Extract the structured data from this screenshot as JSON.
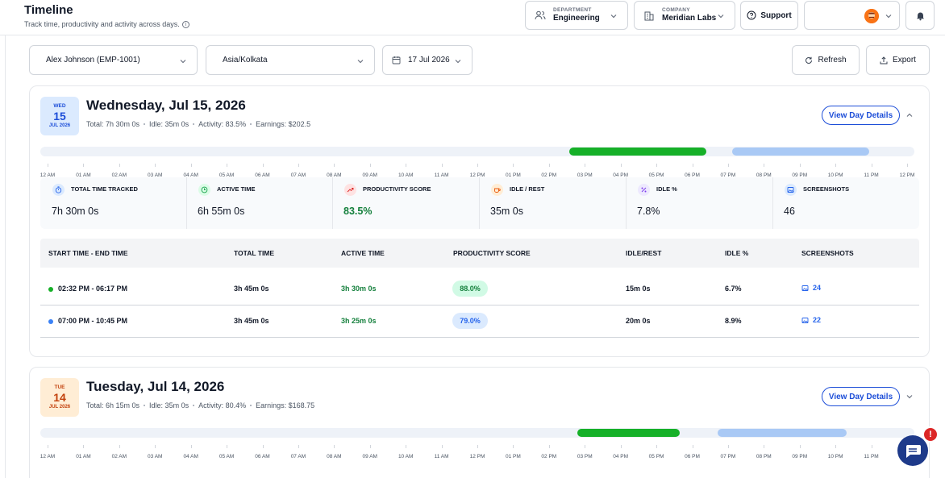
{
  "header": {
    "title": "Timeline",
    "subtitle": "Track time, productivity and activity across days.",
    "department": {
      "label": "DEPARTMENT",
      "value": "Engineering"
    },
    "company": {
      "label": "COMPANY",
      "value": "Meridian Labs"
    },
    "support_label": "Support"
  },
  "filters": {
    "employee": "Alex Johnson (EMP-1001)",
    "timezone": "Asia/Kolkata",
    "date": "17 Jul 2026",
    "refresh_label": "Refresh",
    "export_label": "Export"
  },
  "hours": [
    "12 AM",
    "01 AM",
    "02 AM",
    "03 AM",
    "04 AM",
    "05 AM",
    "06 AM",
    "07 AM",
    "08 AM",
    "09 AM",
    "10 AM",
    "11 AM",
    "12 PM",
    "01 PM",
    "02 PM",
    "03 PM",
    "04 PM",
    "05 PM",
    "06 PM",
    "07 PM",
    "08 PM",
    "09 PM",
    "10 PM",
    "11 PM",
    "12 PM"
  ],
  "days": [
    {
      "badge": {
        "dow": "WED",
        "day": "15",
        "month_year": "JUL 2026"
      },
      "title": "Wednesday, Jul 15, 2026",
      "meta": [
        "Total: 7h 30m 0s",
        "Idle: 35m 0s",
        "Activity: 83.5%",
        "Earnings: $202.5"
      ],
      "view_label": "View Day Details",
      "expanded": true,
      "sessions_on_track": [
        {
          "start_hour": 14.53,
          "end_hour": 18.28,
          "color": "#16b028"
        },
        {
          "start_hour": 19.0,
          "end_hour": 22.75,
          "color": "#a9c9f5"
        }
      ],
      "stats": [
        {
          "label": "TOTAL TIME TRACKED",
          "value": "7h 30m 0s",
          "icon": "stopwatch-icon"
        },
        {
          "label": "ACTIVE TIME",
          "value": "6h 55m 0s",
          "icon": "clock-icon"
        },
        {
          "label": "PRODUCTIVITY SCORE",
          "value": "83.5%",
          "icon": "trend-up-icon"
        },
        {
          "label": "IDLE / REST",
          "value": "35m 0s",
          "icon": "coffee-icon"
        },
        {
          "label": "IDLE %",
          "value": "7.8%",
          "icon": "percent-icon"
        },
        {
          "label": "SCREENSHOTS",
          "value": "46",
          "icon": "image-icon"
        }
      ],
      "table": {
        "columns": [
          "START TIME - END TIME",
          "TOTAL TIME",
          "ACTIVE TIME",
          "PRODUCTIVITY SCORE",
          "IDLE/REST",
          "IDLE %",
          "SCREENSHOTS"
        ],
        "rows": [
          {
            "range": "02:32 PM - 06:17 PM",
            "total": "3h 45m 0s",
            "active": "3h 30m 0s",
            "score": "88.0%",
            "idle": "15m 0s",
            "idle_pct": "6.7%",
            "shots": "24",
            "dot": "#16b028",
            "pill_bg": "#d1fae5",
            "pill_fg": "#15803d"
          },
          {
            "range": "07:00 PM - 10:45 PM",
            "total": "3h 45m 0s",
            "active": "3h 25m 0s",
            "score": "79.0%",
            "idle": "20m 0s",
            "idle_pct": "8.9%",
            "shots": "22",
            "dot": "#3b82f6",
            "pill_bg": "#dbeafe",
            "pill_fg": "#2563eb"
          }
        ]
      }
    },
    {
      "badge": {
        "dow": "TUE",
        "day": "14",
        "month_year": "JUL 2026"
      },
      "title": "Tuesday, Jul 14, 2026",
      "meta": [
        "Total: 6h 15m 0s",
        "Idle: 35m 0s",
        "Activity: 80.4%",
        "Earnings: $168.75"
      ],
      "view_label": "View Day Details",
      "expanded": false,
      "sessions_on_track": [
        {
          "start_hour": 14.75,
          "end_hour": 17.55,
          "color": "#16b028"
        },
        {
          "start_hour": 18.6,
          "end_hour": 22.15,
          "color": "#a9c9f5"
        }
      ]
    }
  ],
  "colors": {
    "accent": "#1d4ed8",
    "active_green": "#16b028",
    "idle_blue": "#a9c9f5",
    "chat_alert": "#dc2626"
  },
  "chat_alert_text": "!"
}
